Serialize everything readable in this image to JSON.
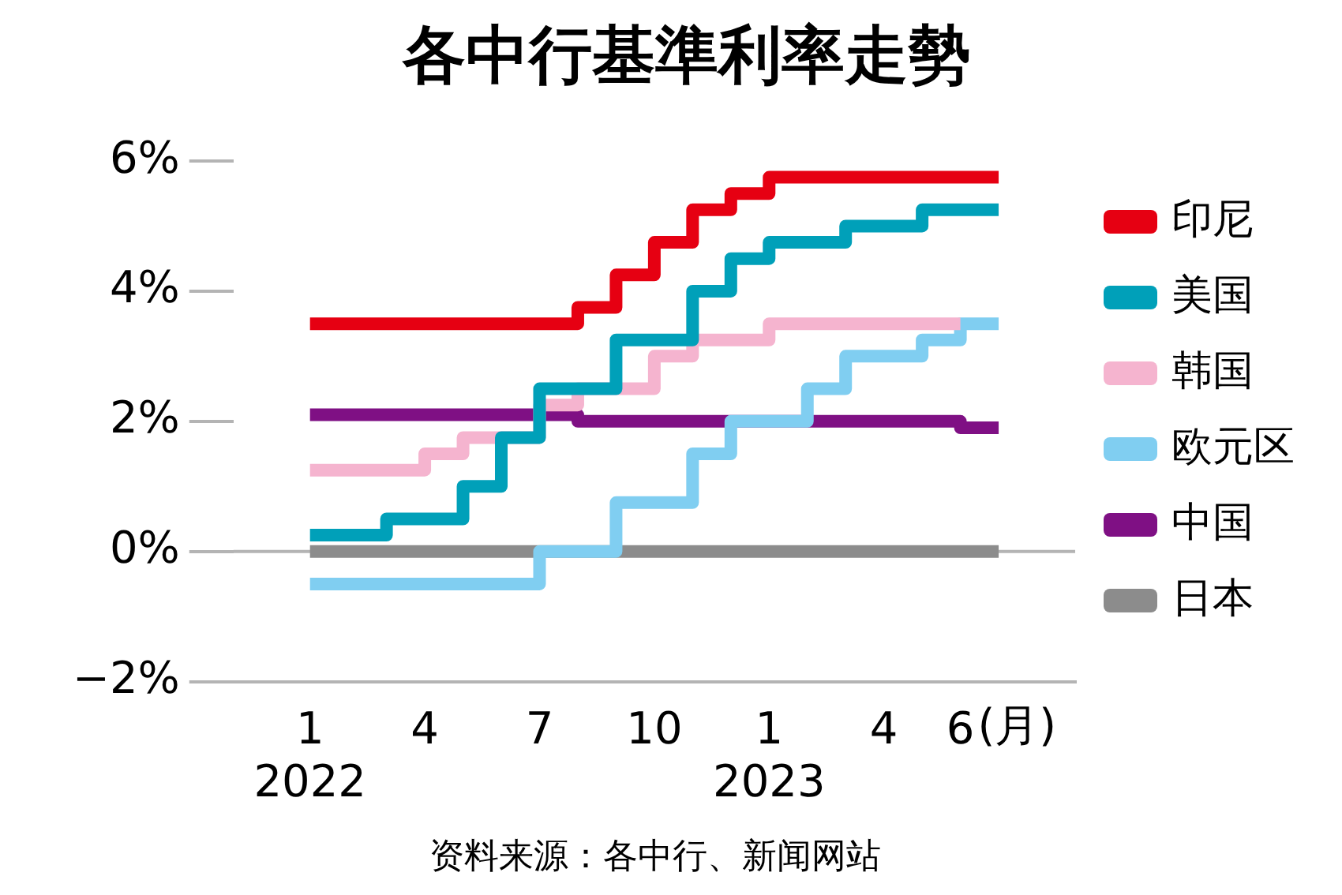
{
  "chart_data": {
    "type": "step",
    "title": "各中行基準利率走勢",
    "xlabel": "(月)",
    "xlim": [
      "2021-11",
      "2023-09"
    ],
    "xticks": [
      {
        "value": "2022-01",
        "label": "1\n2022"
      },
      {
        "value": "2022-04",
        "label": "4"
      },
      {
        "value": "2022-07",
        "label": "7"
      },
      {
        "value": "2022-10",
        "label": "10"
      },
      {
        "value": "2023-01",
        "label": "1\n2023"
      },
      {
        "value": "2023-04",
        "label": "4"
      },
      {
        "value": "2023-06",
        "label": "6"
      }
    ],
    "ylim": [
      -2,
      6
    ],
    "yticks": [
      {
        "value": -2,
        "label": "−2%"
      },
      {
        "value": 0,
        "label": "0%"
      },
      {
        "value": 2,
        "label": "2%"
      },
      {
        "value": 4,
        "label": "4%"
      },
      {
        "value": 6,
        "label": "6%"
      }
    ],
    "series": [
      {
        "name": "印尼",
        "color": "#e60012",
        "x": [
          "2022-01",
          "2022-08",
          "2022-09",
          "2022-10",
          "2022-11",
          "2022-12",
          "2023-01",
          "2023-07"
        ],
        "values": [
          3.5,
          3.75,
          4.25,
          4.75,
          5.25,
          5.5,
          5.75,
          5.75
        ]
      },
      {
        "name": "美国",
        "color": "#00a0b9",
        "x": [
          "2022-01",
          "2022-03",
          "2022-05",
          "2022-06",
          "2022-07",
          "2022-09",
          "2022-11",
          "2022-12",
          "2023-01",
          "2023-03",
          "2023-05",
          "2023-07"
        ],
        "values": [
          0.25,
          0.5,
          1.0,
          1.75,
          2.5,
          3.25,
          4.0,
          4.5,
          4.75,
          5.0,
          5.25,
          5.25
        ]
      },
      {
        "name": "韩国",
        "color": "#f5b4cf",
        "x": [
          "2022-01",
          "2022-04",
          "2022-05",
          "2022-07",
          "2022-08",
          "2022-10",
          "2022-11",
          "2023-01",
          "2023-06"
        ],
        "values": [
          1.25,
          1.5,
          1.75,
          2.25,
          2.5,
          3.0,
          3.25,
          3.5,
          3.5
        ]
      },
      {
        "name": "欧元区",
        "color": "#80cef1",
        "x": [
          "2022-01",
          "2022-07",
          "2022-09",
          "2022-11",
          "2022-12",
          "2023-02",
          "2023-03",
          "2023-05",
          "2023-06",
          "2023-07"
        ],
        "values": [
          -0.5,
          0,
          0.75,
          1.5,
          2.0,
          2.5,
          3.0,
          3.25,
          3.5,
          3.5
        ]
      },
      {
        "name": "中国",
        "color": "#7f1084",
        "x": [
          "2022-01",
          "2022-08",
          "2023-06",
          "2023-07"
        ],
        "values": [
          2.1,
          2.0,
          1.9,
          1.9
        ]
      },
      {
        "name": "日本",
        "color": "#8c8c8c",
        "x": [
          "2022-01",
          "2023-07"
        ],
        "values": [
          0,
          0
        ]
      }
    ],
    "ref_lines": [
      {
        "axis": "y",
        "value": 0,
        "color": "#b4b4b4"
      }
    ],
    "grid": false,
    "legend": "right",
    "line_style": "solid",
    "marker": "none",
    "annotations": [
      "资料来源：各中行、新闻网站"
    ]
  }
}
